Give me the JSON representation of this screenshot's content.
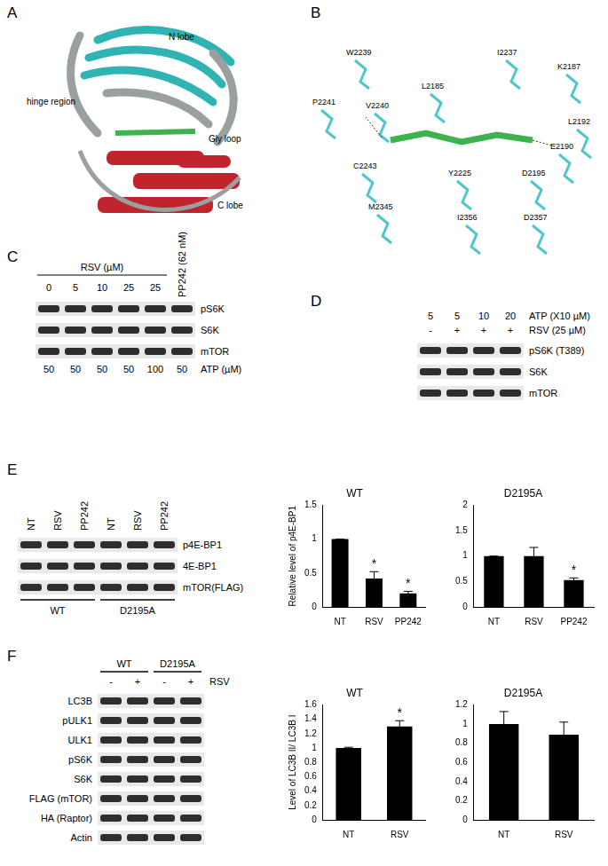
{
  "figure": {
    "A": {
      "letter": "A",
      "labels": [
        "N lobe",
        "hinge region",
        "Gly loop",
        "C lobe"
      ]
    },
    "B": {
      "letter": "B",
      "residues": [
        "W2239",
        "L2185",
        "I2237",
        "K2187",
        "L2192",
        "P2241",
        "V2240",
        "E2190",
        "D2195",
        "C2243",
        "Y2225",
        "M2345",
        "I2356",
        "D2357"
      ]
    },
    "C": {
      "letter": "C",
      "treatment": "RSV (µM)",
      "doses": [
        "0",
        "5",
        "10",
        "25",
        "25"
      ],
      "control": "PP242 (62 nM)",
      "rows": [
        "pS6K",
        "S6K",
        "mTOR"
      ],
      "atp": [
        "50",
        "50",
        "50",
        "50",
        "100",
        "50"
      ],
      "atp_label": "ATP (µM)"
    },
    "D": {
      "letter": "D",
      "atp": [
        "5",
        "5",
        "10",
        "20"
      ],
      "atp_label": "ATP (X10 µM)",
      "rsv": [
        "-",
        "+",
        "+",
        "+"
      ],
      "rsv_label": "RSV (25 µM)",
      "rows": [
        "pS6K (T389)",
        "S6K",
        "mTOR"
      ]
    },
    "E": {
      "letter": "E",
      "lanes": [
        "NT",
        "RSV",
        "PP242",
        "NT",
        "RSV",
        "PP242"
      ],
      "rows": [
        "p4E-BP1",
        "4E-BP1",
        "mTOR(FLAG)"
      ],
      "groups": [
        "WT",
        "D2195A"
      ]
    },
    "F": {
      "letter": "F",
      "groups": [
        "WT",
        "D2195A"
      ],
      "rsv": [
        "-",
        "+",
        "-",
        "+"
      ],
      "rsv_label": "RSV",
      "rows": [
        "LC3B",
        "pULK1",
        "ULK1",
        "pS6K",
        "S6K",
        "FLAG (mTOR)",
        "HA (Raptor)",
        "Actin"
      ]
    }
  },
  "chart_data": [
    {
      "type": "bar",
      "title": "WT",
      "ylabel": "Relative level of p4E-BP1",
      "categories": [
        "NT",
        "RSV",
        "PP242"
      ],
      "values": [
        1,
        0.42,
        0.2
      ],
      "errors": [
        0,
        0.1,
        0.03
      ],
      "color": "#000000",
      "ylim": [
        0,
        1.5
      ],
      "yticks": [
        0,
        0.5,
        1,
        1.5
      ],
      "grid": false,
      "annotations": [
        {
          "category": "RSV",
          "text": "*"
        },
        {
          "category": "PP242",
          "text": "*"
        }
      ]
    },
    {
      "type": "bar",
      "title": "D2195A",
      "categories": [
        "NT",
        "RSV",
        "PP242"
      ],
      "values": [
        1,
        1.0,
        0.53
      ],
      "errors": [
        0,
        0.17,
        0.04
      ],
      "color": "#000000",
      "ylim": [
        0,
        2
      ],
      "yticks": [
        0,
        0.5,
        1,
        1.5,
        2
      ],
      "grid": false,
      "annotations": [
        {
          "category": "PP242",
          "text": "*"
        }
      ]
    },
    {
      "type": "bar",
      "title": "WT",
      "ylabel": "Level of LC3B II/ LC3B I",
      "categories": [
        "NT",
        "RSV"
      ],
      "values": [
        1,
        1.3
      ],
      "errors": [
        0.01,
        0.08
      ],
      "color": "#000000",
      "ylim": [
        0,
        1.6
      ],
      "yticks": [
        0,
        0.2,
        0.4,
        0.6,
        0.8,
        1,
        1.2,
        1.4,
        1.6
      ],
      "grid": false,
      "annotations": [
        {
          "category": "RSV",
          "text": "*"
        }
      ]
    },
    {
      "type": "bar",
      "title": "D2195A",
      "categories": [
        "NT",
        "RSV"
      ],
      "values": [
        1,
        0.89
      ],
      "errors": [
        0.13,
        0.13
      ],
      "color": "#000000",
      "ylim": [
        0,
        1.2
      ],
      "yticks": [
        0,
        0.2,
        0.4,
        0.6,
        0.8,
        1,
        1.2
      ],
      "grid": false
    }
  ]
}
